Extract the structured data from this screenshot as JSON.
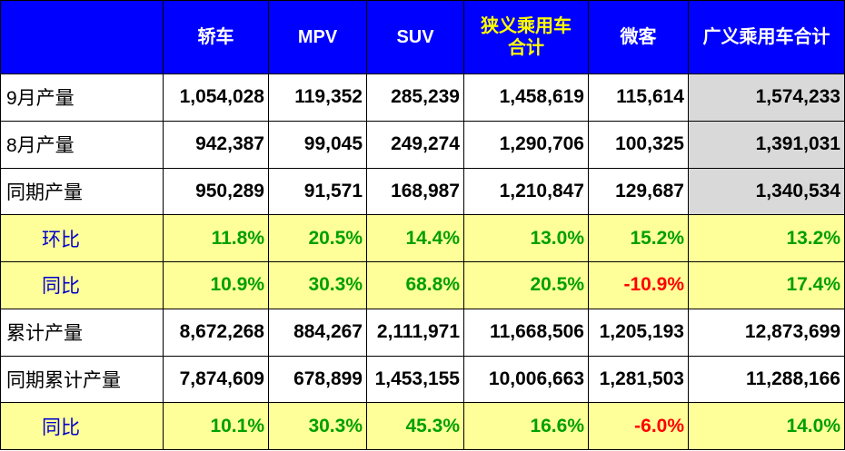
{
  "chart_data": {
    "type": "table",
    "columns": [
      "",
      "轿车",
      "MPV",
      "SUV",
      "狭义乘用车合计",
      "微客",
      "广义乘用车合计"
    ],
    "colors": {
      "header_bg": "#0000ff",
      "header_text": "#ffffff",
      "header_highlight_text": "#ffff00",
      "ratio_row_bg": "#ffff99",
      "ratio_positive": "#00a000",
      "ratio_negative": "#ff0000",
      "ratio_label": "#0000cc",
      "total_cell_bg": "#d9d9d9"
    },
    "rows": [
      {
        "label": "9月产量",
        "kind": "abs",
        "cells": [
          "1,054,028",
          "119,352",
          "285,239",
          "1,458,619",
          "115,614",
          "1,574,233"
        ]
      },
      {
        "label": "8月产量",
        "kind": "abs",
        "cells": [
          "942,387",
          "99,045",
          "249,274",
          "1,290,706",
          "100,325",
          "1,391,031"
        ]
      },
      {
        "label": "同期产量",
        "kind": "abs",
        "cells": [
          "950,289",
          "91,571",
          "168,987",
          "1,210,847",
          "129,687",
          "1,340,534"
        ]
      },
      {
        "label": "环比",
        "kind": "pct",
        "cells": [
          "11.8%",
          "20.5%",
          "14.4%",
          "13.0%",
          "15.2%",
          "13.2%"
        ]
      },
      {
        "label": "同比",
        "kind": "pct",
        "cells": [
          "10.9%",
          "30.3%",
          "68.8%",
          "20.5%",
          "-10.9%",
          "17.4%"
        ]
      },
      {
        "label": "累计产量",
        "kind": "abs",
        "cells": [
          "8,672,268",
          "884,267",
          "2,111,971",
          "11,668,506",
          "1,205,193",
          "12,873,699"
        ]
      },
      {
        "label": "同期累计产量",
        "kind": "abs",
        "cells": [
          "7,874,609",
          "678,899",
          "1,453,155",
          "10,006,663",
          "1,281,503",
          "11,288,166"
        ]
      },
      {
        "label": "同比",
        "kind": "pct",
        "cells": [
          "10.1%",
          "30.3%",
          "45.3%",
          "16.6%",
          "-6.0%",
          "14.0%"
        ]
      }
    ]
  }
}
